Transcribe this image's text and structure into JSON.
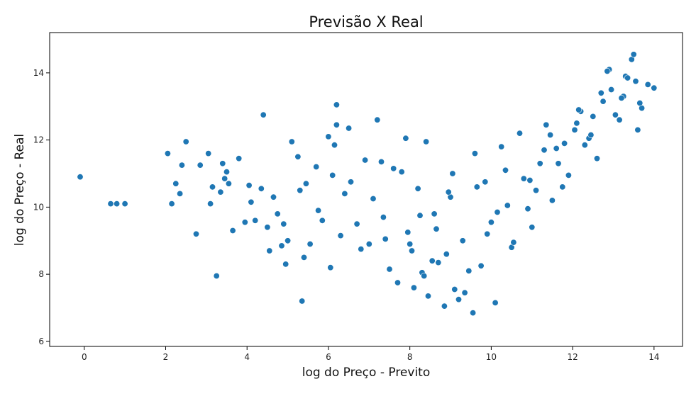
{
  "chart_data": {
    "type": "scatter",
    "title": "Previsão X Real",
    "xlabel": "log do Preço - Previto",
    "ylabel": "log do Preço - Real",
    "xlim": [
      -0.85,
      14.7
    ],
    "ylim": [
      5.85,
      15.2
    ],
    "xticks": [
      0,
      2,
      4,
      6,
      8,
      10,
      12,
      14
    ],
    "yticks": [
      6,
      8,
      10,
      12,
      14
    ],
    "grid": false,
    "point_color": "#1f77b4",
    "point_edge_color": "#ffffff",
    "series": [
      {
        "name": "Previsão X Real",
        "x": [
          -0.1,
          0.65,
          0.8,
          1.0,
          2.05,
          2.15,
          2.25,
          2.35,
          2.4,
          2.5,
          2.75,
          2.85,
          3.05,
          3.1,
          3.15,
          3.25,
          3.35,
          3.4,
          3.45,
          3.5,
          3.55,
          3.65,
          3.8,
          3.95,
          4.05,
          4.1,
          4.2,
          4.35,
          4.4,
          4.5,
          4.55,
          4.65,
          4.75,
          4.85,
          4.9,
          4.95,
          5.0,
          5.1,
          5.25,
          5.3,
          5.35,
          5.4,
          5.45,
          5.55,
          5.7,
          5.75,
          5.85,
          6.0,
          6.05,
          6.1,
          6.15,
          6.2,
          6.3,
          6.4,
          6.5,
          6.55,
          6.7,
          6.9,
          7.0,
          7.1,
          7.3,
          7.35,
          7.5,
          7.7,
          7.8,
          7.95,
          8.1,
          8.2,
          8.3,
          8.45,
          8.6,
          8.85,
          8.9,
          9.0,
          9.1,
          9.3,
          9.55,
          9.75,
          10.0,
          10.1,
          10.4,
          10.5,
          10.8,
          11.0,
          11.2,
          11.5,
          11.6,
          11.9,
          12.05,
          12.4,
          12.6,
          12.75,
          12.95,
          13.15,
          13.3,
          13.55,
          13.7,
          14.0,
          6.2,
          6.8,
          7.2,
          7.6,
          8.0,
          8.4,
          8.7,
          9.2,
          9.6,
          9.9,
          10.25,
          10.7,
          11.1,
          11.45,
          11.8,
          12.2,
          12.5,
          12.9,
          13.25,
          13.45,
          13.65,
          13.85,
          7.4,
          7.9,
          8.25,
          8.55,
          8.95,
          9.45,
          9.85,
          10.35,
          10.9,
          11.3,
          11.65,
          12.1,
          12.3,
          12.7,
          13.05,
          13.35,
          13.6,
          8.05,
          8.35,
          8.65,
          9.05,
          9.35,
          9.65,
          10.15,
          10.55,
          10.95,
          11.35,
          11.75,
          12.15,
          12.45,
          12.85,
          13.2,
          13.5
        ],
        "y": [
          10.9,
          10.1,
          10.1,
          10.1,
          11.6,
          10.1,
          10.7,
          10.4,
          11.25,
          11.95,
          9.2,
          11.25,
          11.6,
          10.1,
          10.6,
          7.95,
          10.45,
          11.3,
          10.85,
          11.05,
          10.7,
          9.3,
          11.45,
          9.55,
          10.65,
          10.15,
          9.6,
          10.55,
          12.75,
          9.4,
          8.7,
          10.3,
          9.8,
          8.85,
          9.5,
          8.3,
          9.0,
          11.95,
          11.5,
          10.5,
          7.2,
          8.5,
          10.7,
          8.9,
          11.2,
          9.9,
          9.6,
          12.1,
          8.2,
          10.95,
          11.85,
          13.05,
          9.15,
          10.4,
          12.35,
          10.75,
          9.5,
          11.4,
          8.9,
          10.25,
          11.35,
          9.7,
          8.15,
          7.75,
          11.05,
          9.25,
          7.6,
          10.55,
          8.05,
          7.35,
          9.8,
          7.05,
          8.6,
          10.3,
          7.55,
          9.0,
          6.85,
          8.25,
          9.55,
          7.15,
          10.05,
          8.8,
          10.85,
          9.4,
          11.3,
          10.2,
          11.75,
          10.95,
          12.3,
          12.05,
          11.45,
          13.15,
          13.5,
          12.6,
          13.9,
          13.75,
          12.95,
          13.55,
          12.45,
          8.75,
          12.6,
          11.15,
          8.9,
          11.95,
          8.35,
          7.25,
          11.6,
          9.2,
          11.8,
          12.2,
          10.5,
          12.15,
          11.9,
          12.85,
          12.7,
          14.1,
          13.3,
          14.4,
          13.1,
          13.65,
          9.05,
          12.05,
          9.75,
          8.4,
          10.45,
          8.1,
          10.75,
          11.1,
          9.95,
          11.7,
          11.3,
          12.5,
          11.85,
          13.4,
          12.75,
          13.85,
          12.3,
          8.7,
          7.95,
          9.35,
          11.0,
          7.45,
          10.6,
          9.85,
          8.95,
          10.8,
          12.45,
          10.6,
          12.9,
          12.15,
          14.05,
          13.25,
          14.55
        ]
      }
    ]
  }
}
